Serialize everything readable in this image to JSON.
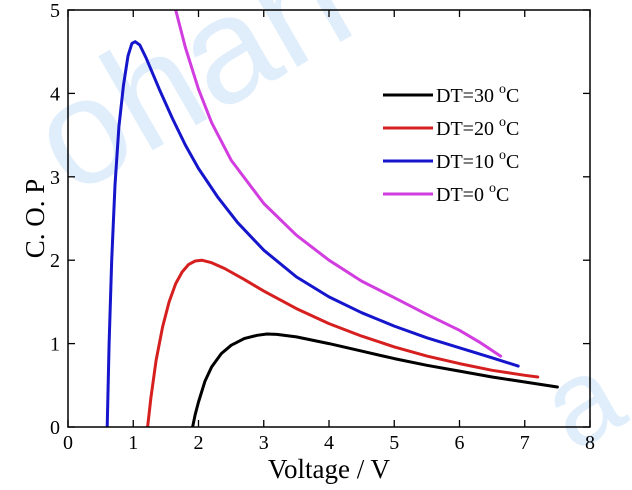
{
  "chart_data": {
    "type": "line",
    "title": "",
    "xlabel": "Voltage / V",
    "ylabel": "C. O. P",
    "xlim": [
      0,
      8
    ],
    "ylim": [
      0,
      5
    ],
    "xticks": [
      0,
      1,
      2,
      3,
      4,
      5,
      6,
      7,
      8
    ],
    "yticks": [
      0,
      1,
      2,
      3,
      4,
      5
    ],
    "grid": false,
    "legend_position": "top-right",
    "series": [
      {
        "name": "DT=30 °C",
        "color": "#000000",
        "points": [
          [
            1.91,
            0
          ],
          [
            1.95,
            0.15
          ],
          [
            2.0,
            0.3
          ],
          [
            2.1,
            0.55
          ],
          [
            2.2,
            0.72
          ],
          [
            2.35,
            0.88
          ],
          [
            2.5,
            0.98
          ],
          [
            2.7,
            1.06
          ],
          [
            2.9,
            1.1
          ],
          [
            3.05,
            1.115
          ],
          [
            3.2,
            1.11
          ],
          [
            3.5,
            1.08
          ],
          [
            4.0,
            1.0
          ],
          [
            4.5,
            0.91
          ],
          [
            5.0,
            0.82
          ],
          [
            5.5,
            0.74
          ],
          [
            6.0,
            0.67
          ],
          [
            6.5,
            0.6
          ],
          [
            7.0,
            0.54
          ],
          [
            7.5,
            0.48
          ]
        ]
      },
      {
        "name": "DT=20 °C",
        "color": "#d62020",
        "points": [
          [
            1.22,
            0
          ],
          [
            1.27,
            0.35
          ],
          [
            1.35,
            0.8
          ],
          [
            1.45,
            1.2
          ],
          [
            1.55,
            1.5
          ],
          [
            1.65,
            1.72
          ],
          [
            1.75,
            1.86
          ],
          [
            1.85,
            1.95
          ],
          [
            1.95,
            1.99
          ],
          [
            2.05,
            2.0
          ],
          [
            2.2,
            1.97
          ],
          [
            2.4,
            1.9
          ],
          [
            2.7,
            1.77
          ],
          [
            3.0,
            1.63
          ],
          [
            3.5,
            1.42
          ],
          [
            4.0,
            1.24
          ],
          [
            4.5,
            1.09
          ],
          [
            5.0,
            0.96
          ],
          [
            5.5,
            0.85
          ],
          [
            6.0,
            0.76
          ],
          [
            6.5,
            0.68
          ],
          [
            7.0,
            0.62
          ],
          [
            7.2,
            0.6
          ]
        ]
      },
      {
        "name": "DT=10 °C",
        "color": "#1515cc",
        "points": [
          [
            0.6,
            0
          ],
          [
            0.63,
            1.0
          ],
          [
            0.67,
            2.0
          ],
          [
            0.72,
            2.9
          ],
          [
            0.78,
            3.6
          ],
          [
            0.85,
            4.1
          ],
          [
            0.92,
            4.45
          ],
          [
            0.98,
            4.6
          ],
          [
            1.03,
            4.62
          ],
          [
            1.1,
            4.58
          ],
          [
            1.2,
            4.42
          ],
          [
            1.4,
            4.05
          ],
          [
            1.6,
            3.7
          ],
          [
            1.8,
            3.38
          ],
          [
            2.0,
            3.1
          ],
          [
            2.3,
            2.75
          ],
          [
            2.6,
            2.45
          ],
          [
            3.0,
            2.12
          ],
          [
            3.5,
            1.8
          ],
          [
            4.0,
            1.56
          ],
          [
            4.5,
            1.37
          ],
          [
            5.0,
            1.21
          ],
          [
            5.5,
            1.07
          ],
          [
            6.0,
            0.95
          ],
          [
            6.5,
            0.83
          ],
          [
            6.9,
            0.73
          ]
        ]
      },
      {
        "name": "DT=0 °C",
        "color": "#d23de0",
        "points": [
          [
            1.65,
            5.0
          ],
          [
            1.8,
            4.55
          ],
          [
            2.0,
            4.05
          ],
          [
            2.2,
            3.65
          ],
          [
            2.5,
            3.2
          ],
          [
            3.0,
            2.68
          ],
          [
            3.5,
            2.3
          ],
          [
            4.0,
            2.0
          ],
          [
            4.5,
            1.75
          ],
          [
            5.0,
            1.55
          ],
          [
            5.5,
            1.35
          ],
          [
            6.0,
            1.16
          ],
          [
            6.3,
            1.02
          ],
          [
            6.63,
            0.85
          ]
        ]
      }
    ],
    "legend_entries": [
      {
        "text": "DT=30 ",
        "unit": "C",
        "sup": "o",
        "color": "#000000"
      },
      {
        "text": "DT=20 ",
        "unit": "C",
        "sup": "o",
        "color": "#d62020"
      },
      {
        "text": "DT=10 ",
        "unit": "C",
        "sup": "o",
        "color": "#1515cc"
      },
      {
        "text": "DT=0 ",
        "unit": "C",
        "sup": "o",
        "color": "#d23de0"
      }
    ]
  }
}
